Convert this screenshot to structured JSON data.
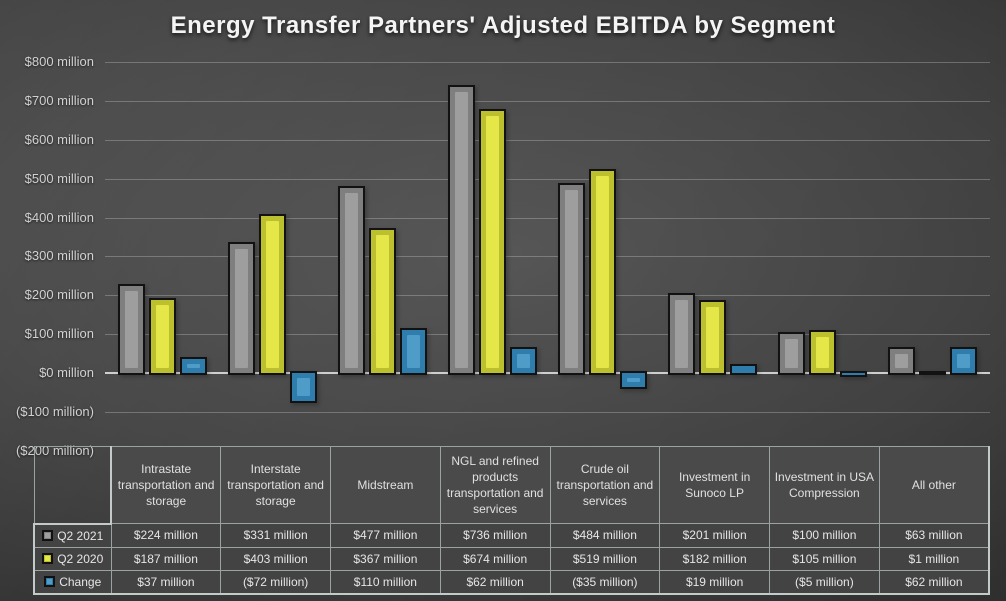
{
  "title": "Energy Transfer Partners' Adjusted EBITDA by Segment",
  "colors": {
    "background_center": "#585858",
    "background_edge": "#232323",
    "bar_outline": "#121212",
    "gridline": "rgba(220,220,220,0.30)",
    "axis_line": "#cfcfcf",
    "tick_text": "#d2d2d2",
    "table_border": "#9aa2a2",
    "table_text": "#e6e6e6"
  },
  "chart_data": {
    "type": "bar",
    "title": "Energy Transfer Partners' Adjusted EBITDA by Segment",
    "xlabel": "",
    "ylabel": "",
    "ylim": [
      -200,
      800
    ],
    "grid": true,
    "legend_position": "table-left-column",
    "unit": "$ million",
    "categories": [
      "Intrastate transportation and storage",
      "Interstate transportation and storage",
      "Midstream",
      "NGL and refined products transportation and services",
      "Crude oil transportation and services",
      "Investment in Sunoco LP",
      "Investment in USA Compression",
      "All other"
    ],
    "ytick_values": [
      800,
      700,
      600,
      500,
      400,
      300,
      200,
      100,
      0,
      -100,
      -200
    ],
    "ytick_labels": [
      "$800 million",
      "$700 million",
      "$600 million",
      "$500 million",
      "$400 million",
      "$300 million",
      "$200 million",
      "$100 million",
      "$0 million",
      "($100 million)",
      "($200 million)"
    ],
    "series": [
      {
        "name": "Q2 2021",
        "color": "#7f7f7f",
        "inner_color": "#9e9e9e",
        "values": [
          224,
          331,
          477,
          736,
          484,
          201,
          100,
          63
        ],
        "display": [
          "$224 million",
          "$331 million",
          "$477 million",
          "$736 million",
          "$484 million",
          "$201 million",
          "$100 million",
          "$63 million"
        ]
      },
      {
        "name": "Q2 2020",
        "color": "#bcbf2e",
        "inner_color": "#e4e747",
        "values": [
          187,
          403,
          367,
          674,
          519,
          182,
          105,
          1
        ],
        "display": [
          "$187 million",
          "$403 million",
          "$367 million",
          "$674 million",
          "$519 million",
          "$182 million",
          "$105 million",
          "$1 million"
        ]
      },
      {
        "name": "Change",
        "color": "#2e7dad",
        "inner_color": "#4f9cc9",
        "values": [
          37,
          -72,
          110,
          62,
          -35,
          19,
          -5,
          62
        ],
        "display": [
          "$37 million",
          "($72 million)",
          "$110 million",
          "$62 million",
          "($35 million)",
          "$19 million",
          "($5 million)",
          "$62 million"
        ]
      }
    ]
  }
}
